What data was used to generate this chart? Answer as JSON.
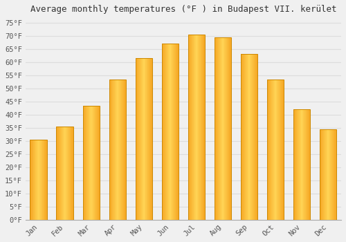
{
  "title": "Average monthly temperatures (°F ) in Budapest VII. kerület",
  "months": [
    "Jan",
    "Feb",
    "Mar",
    "Apr",
    "May",
    "Jun",
    "Jul",
    "Aug",
    "Sep",
    "Oct",
    "Nov",
    "Dec"
  ],
  "values": [
    30.5,
    35.5,
    43.5,
    53.5,
    61.5,
    67.0,
    70.5,
    69.5,
    63.0,
    53.5,
    42.0,
    34.5
  ],
  "bar_color_center": "#FFD455",
  "bar_color_edge": "#F5A623",
  "bar_outline": "#CC8800",
  "background_color": "#f0f0f0",
  "grid_color": "#dddddd",
  "yticks": [
    0,
    5,
    10,
    15,
    20,
    25,
    30,
    35,
    40,
    45,
    50,
    55,
    60,
    65,
    70,
    75
  ],
  "ylim": [
    0,
    77
  ],
  "title_fontsize": 9,
  "tick_fontsize": 7.5,
  "font_family": "monospace"
}
